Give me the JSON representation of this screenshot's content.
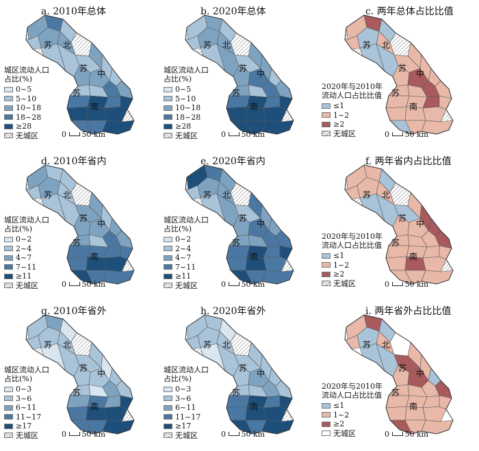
{
  "colors": {
    "blue": [
      "#d9e6f0",
      "#a9c3d9",
      "#7ea3c1",
      "#4a78a3",
      "#1d4f7a"
    ],
    "ratio": [
      "#a9c3d9",
      "#e8b8a8",
      "#a85a5c"
    ],
    "hatch": "#888888",
    "border": "#5a5a5a"
  },
  "scale_label": "50 km",
  "scale_zero": "0",
  "map_labels": [
    "苏",
    "北",
    "苏",
    "中",
    "苏",
    "南"
  ],
  "panels": [
    {
      "id": "a",
      "title": "a. 2010年总体",
      "legend_type": "blue",
      "legend_title": [
        "城区流动人口",
        "占比(%)"
      ],
      "classes": [
        "0~5",
        "5~10",
        "10~18",
        "18~28",
        "≥28"
      ],
      "no_data": "无城区",
      "no_data_style": "hatch",
      "map": {
        "n": [
          2,
          3,
          1,
          1,
          2,
          1,
          2,
          1,
          3
        ],
        "c": [
          2,
          1,
          2,
          1,
          2,
          1,
          3,
          2,
          1,
          1
        ],
        "s": [
          3,
          4,
          3,
          4,
          4,
          3,
          4,
          4,
          3,
          4
        ]
      }
    },
    {
      "id": "b",
      "title": "b. 2020年总体",
      "legend_type": "blue",
      "legend_title": [
        "城区流动人口",
        "占比(%)"
      ],
      "classes": [
        "0~5",
        "5~10",
        "10~18",
        "18~28",
        "≥28"
      ],
      "no_data": "无城区",
      "no_data_style": "hatch",
      "map": {
        "n": [
          1,
          2,
          1,
          1,
          2,
          1,
          2,
          2,
          3
        ],
        "c": [
          2,
          1,
          2,
          2,
          3,
          1,
          3,
          2,
          2,
          1
        ],
        "s": [
          3,
          4,
          4,
          4,
          4,
          3,
          4,
          4,
          4,
          4
        ]
      }
    },
    {
      "id": "c",
      "title": "c. 两年总体占比比值",
      "legend_type": "ratio",
      "legend_title": [
        "2020年与2010年",
        "流动人口占比比值"
      ],
      "classes": [
        "≤1",
        "1~2",
        "≥2"
      ],
      "no_data": "无城区",
      "no_data_style": "hatch",
      "map": {
        "n": [
          1,
          2,
          0,
          1,
          0,
          0,
          1,
          0,
          0
        ],
        "c": [
          1,
          1,
          1,
          1,
          2,
          1,
          2,
          1,
          1,
          1
        ],
        "s": [
          1,
          1,
          0,
          1,
          1,
          2,
          1,
          1,
          1,
          1
        ]
      }
    },
    {
      "id": "d",
      "title": "d. 2010年省内",
      "legend_type": "blue",
      "legend_title": [
        "城区流动人口",
        "占比(%)"
      ],
      "classes": [
        "0~2",
        "2~4",
        "4~7",
        "7~11",
        "≥11"
      ],
      "no_data": "无城区",
      "no_data_style": "hatch",
      "map": {
        "n": [
          2,
          1,
          1,
          1,
          2,
          1,
          1,
          1,
          3
        ],
        "c": [
          2,
          2,
          2,
          1,
          2,
          2,
          3,
          2,
          2,
          1
        ],
        "s": [
          3,
          3,
          4,
          3,
          4,
          3,
          3,
          4,
          3,
          3
        ]
      }
    },
    {
      "id": "e",
      "title": "e. 2020年省内",
      "legend_type": "blue",
      "legend_title": [
        "城区流动人口",
        "占比(%)"
      ],
      "classes": [
        "0~2",
        "2~4",
        "4~7",
        "7~11",
        "≥11"
      ],
      "no_data": "无城区",
      "no_data_style": "hatch",
      "map": {
        "n": [
          4,
          3,
          2,
          1,
          2,
          1,
          2,
          2,
          3
        ],
        "c": [
          3,
          1,
          2,
          2,
          3,
          2,
          3,
          3,
          2,
          2
        ],
        "s": [
          3,
          3,
          4,
          4,
          4,
          3,
          4,
          3,
          3,
          3
        ]
      }
    },
    {
      "id": "f",
      "title": "f. 两年省内占比比值",
      "legend_type": "ratio",
      "legend_title": [
        "2020年与2010年",
        "流动人口占比比值"
      ],
      "classes": [
        "≤1",
        "1~2",
        "≥2"
      ],
      "no_data": "无城区",
      "no_data_style": "hatch",
      "map": {
        "n": [
          1,
          1,
          0,
          1,
          1,
          0,
          1,
          0,
          0
        ],
        "c": [
          1,
          0,
          1,
          2,
          1,
          2,
          1,
          2,
          1,
          1
        ],
        "s": [
          1,
          1,
          1,
          1,
          2,
          1,
          1,
          1,
          1,
          1
        ]
      }
    },
    {
      "id": "g",
      "title": "g. 2010年省外",
      "legend_type": "blue",
      "legend_title": [
        "城区流动人口",
        "占比(%)"
      ],
      "classes": [
        "0~3",
        "3~6",
        "6~11",
        "11~17",
        "≥17"
      ],
      "no_data": "无城区",
      "no_data_style": "hatch",
      "map": {
        "n": [
          1,
          2,
          0,
          1,
          1,
          0,
          1,
          1,
          2
        ],
        "c": [
          1,
          1,
          1,
          0,
          1,
          1,
          2,
          1,
          1,
          0
        ],
        "s": [
          2,
          3,
          3,
          3,
          4,
          2,
          4,
          4,
          3,
          4
        ]
      }
    },
    {
      "id": "h",
      "title": "h. 2020年省外",
      "legend_type": "blue",
      "legend_title": [
        "城区流动人口",
        "占比(%)"
      ],
      "classes": [
        "0~3",
        "3~6",
        "6~11",
        "11~17",
        "≥17"
      ],
      "no_data": "无城区",
      "no_data_style": "hatch",
      "map": {
        "n": [
          1,
          1,
          0,
          1,
          1,
          0,
          1,
          1,
          2
        ],
        "c": [
          1,
          1,
          1,
          1,
          2,
          1,
          2,
          1,
          1,
          1
        ],
        "s": [
          3,
          3,
          4,
          4,
          4,
          3,
          4,
          4,
          3,
          4
        ]
      }
    },
    {
      "id": "i",
      "title": "i. 两年省外占比比值",
      "legend_type": "ratio",
      "legend_title": [
        "2020年与2010年",
        "流动人口占比比值"
      ],
      "classes": [
        "≤1",
        "1~2",
        "≥2"
      ],
      "no_data": "无城区",
      "no_data_style": "blank",
      "map": {
        "n": [
          1,
          2,
          0,
          1,
          0,
          0,
          1,
          0,
          0
        ],
        "c": [
          1,
          2,
          1,
          1,
          2,
          0,
          1,
          2,
          1,
          1
        ],
        "s": [
          1,
          1,
          2,
          1,
          1,
          1,
          1,
          1,
          1,
          1
        ]
      }
    }
  ]
}
